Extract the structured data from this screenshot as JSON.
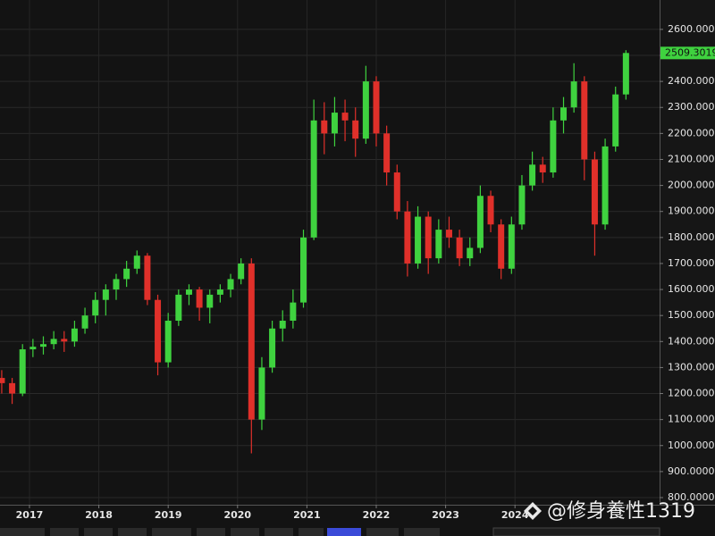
{
  "chart_data": {
    "type": "candlestick",
    "x": [
      2016.6,
      2016.75,
      2016.9,
      2017.05,
      2017.2,
      2017.35,
      2017.5,
      2017.65,
      2017.8,
      2017.95,
      2018.1,
      2018.25,
      2018.4,
      2018.55,
      2018.7,
      2018.85,
      2019.0,
      2019.15,
      2019.3,
      2019.45,
      2019.6,
      2019.75,
      2019.9,
      2020.05,
      2020.2,
      2020.35,
      2020.5,
      2020.65,
      2020.8,
      2020.95,
      2021.1,
      2021.25,
      2021.4,
      2021.55,
      2021.7,
      2021.85,
      2022.0,
      2022.15,
      2022.3,
      2022.45,
      2022.6,
      2022.75,
      2022.9,
      2023.05,
      2023.2,
      2023.35,
      2023.5,
      2023.65,
      2023.8,
      2023.95,
      2024.1,
      2024.25,
      2024.4,
      2024.55,
      2024.7,
      2024.85,
      2025.0,
      2025.15,
      2025.3,
      2025.45,
      2025.6
    ],
    "open": [
      1260,
      1240,
      1200,
      1370,
      1380,
      1390,
      1410,
      1400,
      1450,
      1500,
      1560,
      1600,
      1640,
      1680,
      1730,
      1560,
      1320,
      1480,
      1580,
      1600,
      1530,
      1580,
      1600,
      1640,
      1700,
      1100,
      1300,
      1450,
      1480,
      1550,
      1800,
      2250,
      2200,
      2280,
      2250,
      2180,
      2400,
      2200,
      2050,
      1900,
      1700,
      1880,
      1720,
      1830,
      1800,
      1720,
      1760,
      1960,
      1850,
      1680,
      1850,
      2000,
      2080,
      2050,
      2250,
      2300,
      2400,
      2100,
      1850,
      2150,
      2350
    ],
    "high": [
      1290,
      1260,
      1390,
      1410,
      1420,
      1440,
      1440,
      1480,
      1530,
      1590,
      1620,
      1660,
      1710,
      1750,
      1740,
      1580,
      1510,
      1600,
      1620,
      1610,
      1600,
      1620,
      1660,
      1720,
      1720,
      1340,
      1480,
      1520,
      1600,
      1830,
      2330,
      2320,
      2340,
      2330,
      2300,
      2460,
      2420,
      2230,
      2080,
      1940,
      1920,
      1900,
      1870,
      1880,
      1830,
      1800,
      2000,
      1980,
      1870,
      1880,
      2040,
      2130,
      2110,
      2300,
      2340,
      2470,
      2420,
      2130,
      2180,
      2380,
      2520
    ],
    "low": [
      1200,
      1160,
      1190,
      1340,
      1350,
      1370,
      1360,
      1380,
      1430,
      1470,
      1500,
      1560,
      1610,
      1660,
      1540,
      1270,
      1300,
      1460,
      1540,
      1480,
      1470,
      1550,
      1570,
      1620,
      970,
      1060,
      1280,
      1400,
      1450,
      1530,
      1790,
      2120,
      2150,
      2170,
      2110,
      2160,
      2150,
      2000,
      1870,
      1650,
      1680,
      1660,
      1700,
      1760,
      1690,
      1690,
      1740,
      1820,
      1640,
      1660,
      1830,
      1980,
      2010,
      2030,
      2200,
      2280,
      2020,
      1730,
      1830,
      2130,
      2330
    ],
    "close": [
      1240,
      1200,
      1370,
      1380,
      1390,
      1410,
      1400,
      1450,
      1500,
      1560,
      1600,
      1640,
      1680,
      1730,
      1560,
      1320,
      1480,
      1580,
      1600,
      1530,
      1580,
      1600,
      1640,
      1700,
      1100,
      1300,
      1450,
      1480,
      1550,
      1800,
      2250,
      2200,
      2280,
      2250,
      2180,
      2400,
      2200,
      2050,
      1900,
      1700,
      1880,
      1720,
      1830,
      1800,
      1720,
      1760,
      1960,
      1850,
      1680,
      1850,
      2000,
      2080,
      2050,
      2250,
      2300,
      2400,
      2100,
      1850,
      2150,
      2350,
      2509.3019
    ],
    "up_color": "#3fd23f",
    "down_color": "#e0302a",
    "xlim": [
      2016.575,
      2026.085
    ],
    "xticks": [
      2017,
      2018,
      2019,
      2020,
      2021,
      2022,
      2023,
      2024
    ],
    "ylim": [
      772.5,
      2713
    ],
    "yticks": [
      {
        "value": 800,
        "label": "800.0000"
      },
      {
        "value": 900,
        "label": "900.0000"
      },
      {
        "value": 1000,
        "label": "1000.0000"
      },
      {
        "value": 1100,
        "label": "1100.0000"
      },
      {
        "value": 1200,
        "label": "1200.0000"
      },
      {
        "value": 1300,
        "label": "1300.0000"
      },
      {
        "value": 1400,
        "label": "1400.0000"
      },
      {
        "value": 1500,
        "label": "1500.0000"
      },
      {
        "value": 1600,
        "label": "1600.0000"
      },
      {
        "value": 1700,
        "label": "1700.0000"
      },
      {
        "value": 1800,
        "label": "1800.0000"
      },
      {
        "value": 1900,
        "label": "1900.0000"
      },
      {
        "value": 2000,
        "label": "2000.0000"
      },
      {
        "value": 2100,
        "label": "2100.0000"
      },
      {
        "value": 2200,
        "label": "2200.0000"
      },
      {
        "value": 2300,
        "label": "2300.0000"
      },
      {
        "value": 2400,
        "label": "2400.0000"
      },
      {
        "value": 2500,
        "label": "2500.0000"
      },
      {
        "value": 2600,
        "label": "2600.0000"
      }
    ],
    "grid": true,
    "last_price": 2509.3019
  },
  "watermark": "@修身養性1319"
}
